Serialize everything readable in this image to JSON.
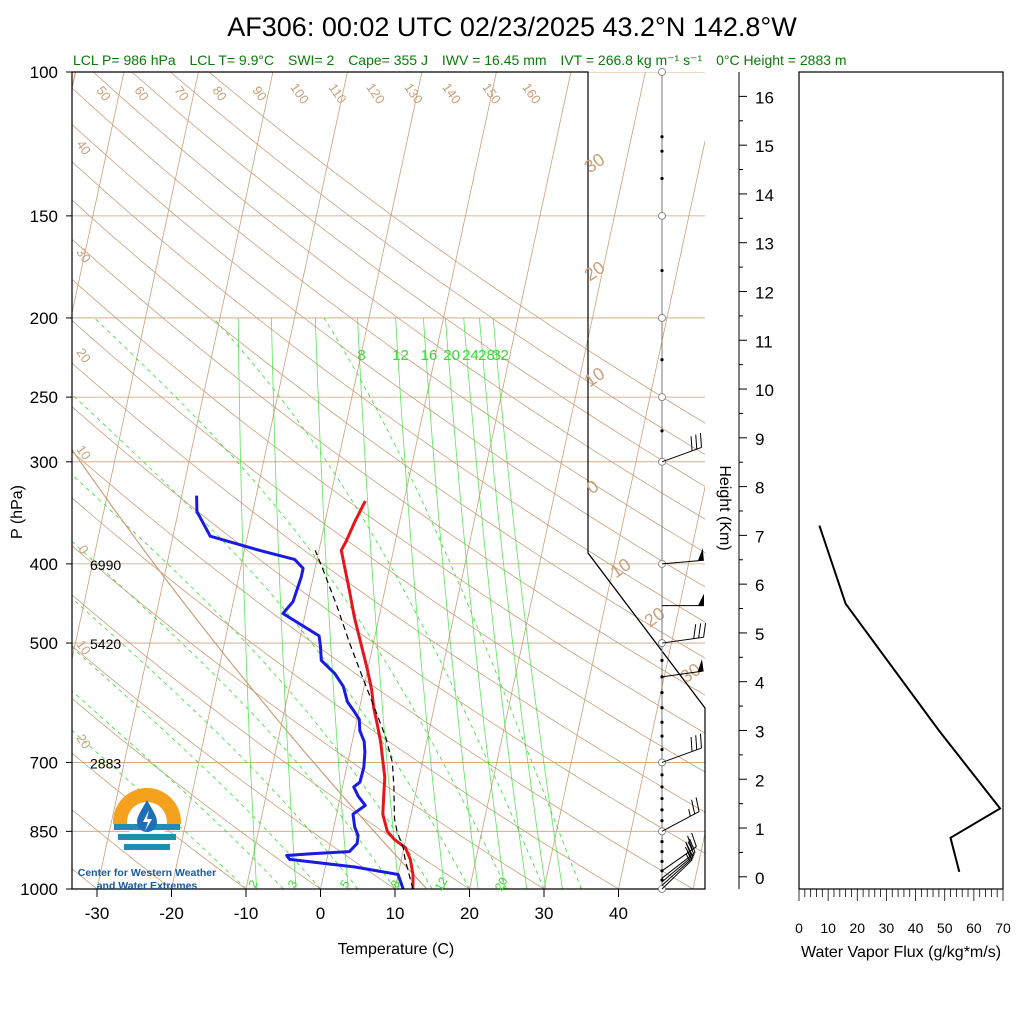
{
  "title": "AF306: 00:02 UTC 02/23/2025  43.2°N 142.8°W",
  "subtitle": {
    "lcl_p": "LCL P= 986 hPa",
    "lcl_t": "LCL T= 9.9°C",
    "swi": "SWI= 2",
    "cape": "Cape= 355 J",
    "iwv": "IWV = 16.45 mm",
    "ivt": "IVT = 266.8 kg m⁻¹ s⁻¹",
    "zero_height": "0°C Height = 2883 m"
  },
  "logo": {
    "line1": "Center for Western Weather",
    "line2": "and Water Extremes",
    "colors": {
      "sun": "#f4a11d",
      "water": "#1e8fb0",
      "drop": "#1e6fb8"
    }
  },
  "height_labels": [
    {
      "p": 400,
      "text": "6990"
    },
    {
      "p": 500,
      "text": "5420"
    },
    {
      "p": 700,
      "text": "2883"
    }
  ],
  "chart_data": [
    {
      "type": "line",
      "name": "skew-t",
      "xlabel": "Temperature (C)",
      "ylabel": "P (hPa)",
      "xlim": [
        -33,
        52
      ],
      "ylim": [
        1000,
        100
      ],
      "log_y": true,
      "x_ticks": [
        -30,
        -20,
        -10,
        0,
        10,
        20,
        30,
        40
      ],
      "p_ticks": [
        100,
        150,
        200,
        250,
        300,
        400,
        500,
        700,
        850,
        1000
      ],
      "mixing_ratio_labels": [
        "8",
        "12",
        "16",
        "20",
        "24",
        "28",
        "32"
      ],
      "mixing_ratio_bottom_labels": [
        "2",
        "3",
        "5",
        "8",
        "12",
        "20"
      ],
      "dry_adiabat_top_labels": [
        "50",
        "60",
        "70",
        "80",
        "90",
        "100",
        "110",
        "120",
        "130",
        "140",
        "150",
        "160"
      ],
      "left_edge_labels": [
        "40",
        "30",
        "20",
        "10",
        "0",
        "10",
        "20"
      ],
      "right_edge_labels": [
        "30",
        "20",
        "10",
        "0",
        "10",
        "20",
        "30"
      ],
      "colors": {
        "temperature": "#e8141c",
        "dewpoint": "#1a1ae6",
        "parcel": "#000000",
        "isotherm": "#c9a07a",
        "mixing": "#33dd33"
      },
      "series": [
        {
          "name": "temperature",
          "points": [
            [
              12.4,
              1000
            ],
            [
              12,
              960
            ],
            [
              11.2,
              920
            ],
            [
              10.2,
              890
            ],
            [
              8.5,
              870
            ],
            [
              7.3,
              850
            ],
            [
              6.2,
              810
            ],
            [
              5.8,
              770
            ],
            [
              5.4,
              730
            ],
            [
              4.5,
              690
            ],
            [
              3.8,
              660
            ],
            [
              2.9,
              630
            ],
            [
              1.9,
              600
            ],
            [
              1.1,
              570
            ],
            [
              0,
              540
            ],
            [
              -1.7,
              500
            ],
            [
              -3.3,
              465
            ],
            [
              -4.8,
              430
            ],
            [
              -6,
              405
            ],
            [
              -7,
              385
            ],
            [
              -6.6,
              375
            ],
            [
              -6,
              355
            ],
            [
              -5.2,
              335
            ]
          ]
        },
        {
          "name": "dewpoint",
          "points": [
            [
              11.1,
              1000
            ],
            [
              10,
              960
            ],
            [
              4,
              940
            ],
            [
              -5,
              920
            ],
            [
              -5.5,
              910
            ],
            [
              -2,
              905
            ],
            [
              2.8,
              900
            ],
            [
              3.6,
              880
            ],
            [
              3.5,
              860
            ],
            [
              2.8,
              840
            ],
            [
              2.2,
              810
            ],
            [
              3.6,
              790
            ],
            [
              2.4,
              770
            ],
            [
              1.5,
              750
            ],
            [
              2.2,
              740
            ],
            [
              2.3,
              710
            ],
            [
              2,
              680
            ],
            [
              1.6,
              660
            ],
            [
              0.7,
              640
            ],
            [
              0.3,
              620
            ],
            [
              -0.7,
              605
            ],
            [
              -1.8,
              590
            ],
            [
              -2.8,
              565
            ],
            [
              -4.3,
              545
            ],
            [
              -6.5,
              525
            ],
            [
              -7,
              505
            ],
            [
              -7.5,
              490
            ],
            [
              -13,
              460
            ],
            [
              -12,
              445
            ],
            [
              -11.6,
              415
            ],
            [
              -11.6,
              405
            ],
            [
              -13,
              395
            ],
            [
              -18,
              385
            ],
            [
              -25,
              370
            ],
            [
              -27.5,
              345
            ],
            [
              -28,
              330
            ]
          ]
        },
        {
          "name": "parcel",
          "points": [
            [
              12.4,
              1000
            ],
            [
              10.5,
              920
            ],
            [
              9.9,
              890
            ],
            [
              8.6,
              850
            ],
            [
              7.9,
              820
            ],
            [
              6.9,
              750
            ],
            [
              6,
              700
            ],
            [
              4.3,
              650
            ],
            [
              2,
              600
            ],
            [
              -0.5,
              550
            ],
            [
              -3.2,
              500
            ],
            [
              -6,
              450
            ],
            [
              -9,
              405
            ],
            [
              -10.5,
              385
            ]
          ]
        }
      ]
    },
    {
      "type": "line",
      "name": "water-vapor-flux",
      "xlabel": "Water Vapor Flux (g/kg*m/s)",
      "ylabel": "Height (Km)",
      "xlim": [
        0,
        70
      ],
      "ylim": [
        -0.25,
        16.5
      ],
      "x_ticks": [
        0,
        10,
        20,
        30,
        40,
        50,
        60,
        70
      ],
      "y_ticks": [
        0,
        1,
        2,
        3,
        4,
        5,
        6,
        7,
        8,
        9,
        10,
        11,
        12,
        13,
        14,
        15,
        16
      ],
      "color": "#000000",
      "series": [
        {
          "name": "flux",
          "points": [
            [
              55,
              0.1
            ],
            [
              52,
              0.8
            ],
            [
              69,
              1.4
            ],
            [
              48,
              3
            ],
            [
              16,
              5.6
            ],
            [
              7,
              7.2
            ]
          ]
        }
      ]
    }
  ],
  "wind_barbs": [
    {
      "p": 300,
      "dir": 250,
      "spd": 30
    },
    {
      "p": 400,
      "dir": 265,
      "spd": 50
    },
    {
      "p": 450,
      "dir": 270,
      "spd": 50
    },
    {
      "p": 500,
      "dir": 262,
      "spd": 30
    },
    {
      "p": 550,
      "dir": 262,
      "spd": 50
    },
    {
      "p": 700,
      "dir": 250,
      "spd": 30
    },
    {
      "p": 850,
      "dir": 242,
      "spd": 25
    },
    {
      "p": 950,
      "dir": 235,
      "spd": 20
    },
    {
      "p": 970,
      "dir": 232,
      "spd": 20
    },
    {
      "p": 980,
      "dir": 230,
      "spd": 15
    },
    {
      "p": 990,
      "dir": 228,
      "spd": 15
    },
    {
      "p": 1000,
      "dir": 226,
      "spd": 10
    }
  ]
}
